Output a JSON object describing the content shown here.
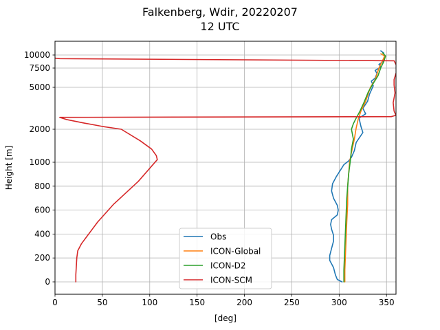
{
  "chart_data": {
    "type": "line",
    "title": "Falkenberg, Wdir, 20220207",
    "subtitle": "12 UTC",
    "xlabel": "[deg]",
    "ylabel": "Height [m]",
    "xlim": [
      0,
      360
    ],
    "x_ticks": [
      0,
      50,
      100,
      150,
      200,
      250,
      300,
      350
    ],
    "y_ticks": [
      {
        "label": "0",
        "value": 0
      },
      {
        "label": "200",
        "value": 200
      },
      {
        "label": "400",
        "value": 400
      },
      {
        "label": "600",
        "value": 600
      },
      {
        "label": "800",
        "value": 800
      },
      {
        "label": "1000",
        "value": 1000
      },
      {
        "label": "2000",
        "value": 2000
      },
      {
        "label": "5000",
        "value": 5000
      },
      {
        "label": "7500",
        "value": 7500
      },
      {
        "label": "10000",
        "value": 10000
      }
    ],
    "grid": true,
    "legend_position": "bottom-center",
    "series": [
      {
        "name": "Obs",
        "color": "#1f77b4",
        "points": [
          [
            303,
            0
          ],
          [
            298,
            20
          ],
          [
            296,
            60
          ],
          [
            294,
            120
          ],
          [
            290,
            180
          ],
          [
            290,
            220
          ],
          [
            292,
            280
          ],
          [
            294,
            340
          ],
          [
            294,
            390
          ],
          [
            292,
            440
          ],
          [
            291,
            480
          ],
          [
            292,
            520
          ],
          [
            298,
            560
          ],
          [
            299,
            600
          ],
          [
            298,
            640
          ],
          [
            294,
            700
          ],
          [
            292,
            760
          ],
          [
            293,
            820
          ],
          [
            297,
            880
          ],
          [
            301,
            930
          ],
          [
            305,
            980
          ],
          [
            310,
            1040
          ],
          [
            313,
            1150
          ],
          [
            316,
            1350
          ],
          [
            318,
            1600
          ],
          [
            325,
            1900
          ],
          [
            323,
            2200
          ],
          [
            322,
            2500
          ],
          [
            321,
            2800
          ],
          [
            328,
            3100
          ],
          [
            325,
            3500
          ],
          [
            330,
            4000
          ],
          [
            332,
            4500
          ],
          [
            336,
            5200
          ],
          [
            334,
            5800
          ],
          [
            338,
            6200
          ],
          [
            340,
            6800
          ],
          [
            338,
            7200
          ],
          [
            344,
            7700
          ],
          [
            342,
            8200
          ],
          [
            346,
            8700
          ],
          [
            348,
            9500
          ],
          [
            347,
            10500
          ],
          [
            344,
            11000
          ]
        ]
      },
      {
        "name": "ICON-Global",
        "color": "#ff7f0e",
        "points": [
          [
            306,
            0
          ],
          [
            306,
            100
          ],
          [
            307,
            300
          ],
          [
            308,
            500
          ],
          [
            309,
            650
          ],
          [
            309,
            800
          ],
          [
            311,
            1000
          ],
          [
            313,
            1300
          ],
          [
            316,
            1700
          ],
          [
            318,
            2100
          ],
          [
            320,
            2700
          ],
          [
            323,
            3300
          ],
          [
            328,
            4000
          ],
          [
            333,
            5000
          ],
          [
            338,
            6000
          ],
          [
            342,
            7500
          ],
          [
            346,
            9000
          ],
          [
            348,
            9800
          ],
          [
            344,
            10300
          ]
        ]
      },
      {
        "name": "ICON-D2",
        "color": "#2ca02c",
        "points": [
          [
            305,
            0
          ],
          [
            305,
            100
          ],
          [
            306,
            300
          ],
          [
            307,
            500
          ],
          [
            308,
            700
          ],
          [
            310,
            900
          ],
          [
            312,
            1100
          ],
          [
            313,
            1400
          ],
          [
            315,
            1700
          ],
          [
            313,
            2000
          ],
          [
            315,
            2400
          ],
          [
            318,
            2800
          ],
          [
            322,
            3300
          ],
          [
            326,
            3900
          ],
          [
            331,
            4700
          ],
          [
            336,
            5500
          ],
          [
            341,
            6500
          ],
          [
            344,
            7600
          ],
          [
            347,
            8700
          ],
          [
            349,
            9800
          ],
          [
            346,
            10500
          ]
        ]
      },
      {
        "name": "ICON-SCM",
        "color": "#d62728",
        "points": [
          [
            22,
            0
          ],
          [
            22,
            60
          ],
          [
            23,
            200
          ],
          [
            24,
            260
          ],
          [
            28,
            320
          ],
          [
            45,
            500
          ],
          [
            62,
            650
          ],
          [
            88,
            840
          ],
          [
            108,
            1080
          ],
          [
            107,
            1200
          ],
          [
            102,
            1400
          ],
          [
            90,
            1650
          ],
          [
            70,
            2000
          ],
          [
            50,
            2200
          ],
          [
            30,
            2450
          ],
          [
            12,
            2700
          ],
          [
            5,
            2850
          ],
          [
            355,
            2900
          ],
          [
            360,
            3000
          ],
          [
            358,
            3300
          ],
          [
            357,
            3900
          ],
          [
            359,
            4600
          ],
          [
            358,
            5300
          ],
          [
            358,
            6000
          ],
          [
            360,
            6800
          ],
          [
            362,
            7500
          ],
          [
            360,
            8200
          ],
          [
            358,
            8900
          ],
          [
            5,
            9300
          ],
          [
            0,
            9400
          ]
        ]
      }
    ]
  }
}
